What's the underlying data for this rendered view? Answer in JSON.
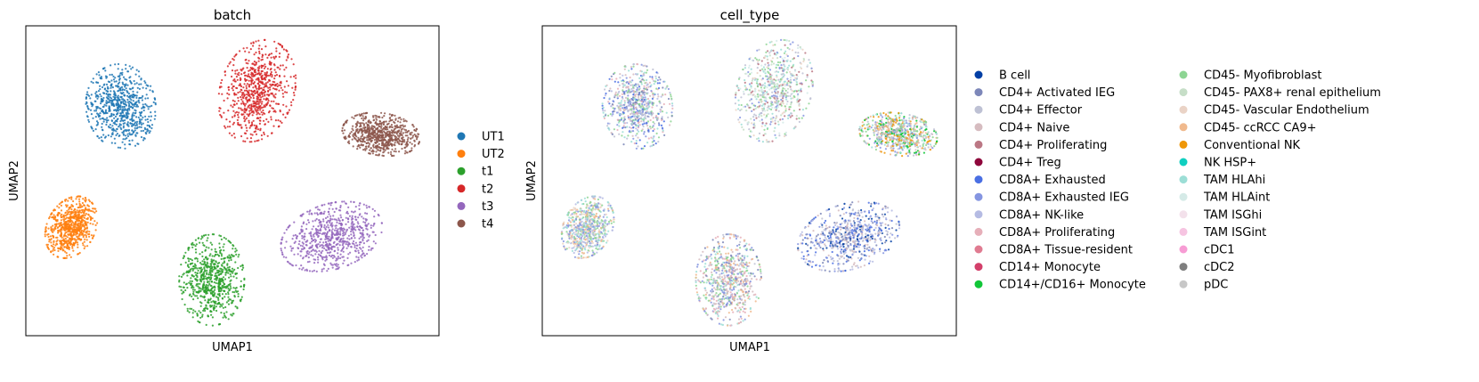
{
  "chart_data": [
    {
      "type": "scatter",
      "title": "batch",
      "xlabel": "UMAP1",
      "ylabel": "UMAP2",
      "grid": false,
      "legend_placement": "right",
      "legend": [
        {
          "label": "UT1",
          "color": "#1f77b4"
        },
        {
          "label": "UT2",
          "color": "#ff7f0e"
        },
        {
          "label": "t1",
          "color": "#2ca02c"
        },
        {
          "label": "t2",
          "color": "#d62728"
        },
        {
          "label": "t3",
          "color": "#9467bd"
        },
        {
          "label": "t4",
          "color": "#8c564b"
        }
      ],
      "clusters": [
        {
          "group": "UT1",
          "color": "#1f77b4",
          "cx": 0.23,
          "cy": 0.74,
          "rx": 0.08,
          "ry": 0.13,
          "rot": -8
        },
        {
          "group": "UT2",
          "color": "#ff7f0e",
          "cx": 0.11,
          "cy": 0.35,
          "rx": 0.055,
          "ry": 0.1,
          "rot": 28
        },
        {
          "group": "t1",
          "color": "#2ca02c",
          "cx": 0.45,
          "cy": 0.18,
          "rx": 0.075,
          "ry": 0.14,
          "rot": 0
        },
        {
          "group": "t2",
          "color": "#d62728",
          "cx": 0.56,
          "cy": 0.79,
          "rx": 0.085,
          "ry": 0.16,
          "rot": 18
        },
        {
          "group": "t3",
          "color": "#9467bd",
          "cx": 0.74,
          "cy": 0.32,
          "rx": 0.12,
          "ry": 0.1,
          "rot": -18
        },
        {
          "group": "t4",
          "color": "#8c564b",
          "cx": 0.86,
          "cy": 0.65,
          "rx": 0.09,
          "ry": 0.065,
          "rot": 8
        }
      ]
    },
    {
      "type": "scatter",
      "title": "cell_type",
      "xlabel": "UMAP1",
      "ylabel": "UMAP2",
      "grid": false,
      "legend_placement": "right",
      "legend": [
        {
          "label": "B cell",
          "color": "#023fa5"
        },
        {
          "label": "CD4+ Activated IEG",
          "color": "#7d87b9"
        },
        {
          "label": "CD4+ Effector",
          "color": "#bec1d4"
        },
        {
          "label": "CD4+ Naive",
          "color": "#d6bcc0"
        },
        {
          "label": "CD4+ Proliferating",
          "color": "#bb7784"
        },
        {
          "label": "CD4+ Treg",
          "color": "#8e063b"
        },
        {
          "label": "CD8A+ Exhausted",
          "color": "#4a6fe3"
        },
        {
          "label": "CD8A+ Exhausted IEG",
          "color": "#8595e1"
        },
        {
          "label": "CD8A+ NK-like",
          "color": "#b5bbe3"
        },
        {
          "label": "CD8A+ Proliferating",
          "color": "#e6afb9"
        },
        {
          "label": "CD8A+ Tissue-resident",
          "color": "#e07b91"
        },
        {
          "label": "CD14+ Monocyte",
          "color": "#d33f6a"
        },
        {
          "label": "CD14+/CD16+ Monocyte",
          "color": "#11c638"
        },
        {
          "label": "CD45- Myofibroblast",
          "color": "#8dd593"
        },
        {
          "label": "CD45- PAX8+ renal epithelium",
          "color": "#c6dec7"
        },
        {
          "label": "CD45- Vascular Endothelium",
          "color": "#ead3c6"
        },
        {
          "label": "CD45- ccRCC CA9+",
          "color": "#f0b98d"
        },
        {
          "label": "Conventional NK",
          "color": "#ef9708"
        },
        {
          "label": "NK HSP+",
          "color": "#0fcfc0"
        },
        {
          "label": "TAM HLAhi",
          "color": "#9cded6"
        },
        {
          "label": "TAM HLAint",
          "color": "#d5eae7"
        },
        {
          "label": "TAM ISGhi",
          "color": "#f3e1eb"
        },
        {
          "label": "TAM ISGint",
          "color": "#f6c4e1"
        },
        {
          "label": "cDC1",
          "color": "#f79cd4"
        },
        {
          "label": "cDC2",
          "color": "#7f7f7f"
        },
        {
          "label": "pDC",
          "color": "#c7c7c7"
        }
      ],
      "clusters": [
        {
          "cx": 0.23,
          "cy": 0.74,
          "rx": 0.08,
          "ry": 0.13,
          "rot": -8,
          "colors": [
            "#7d87b9",
            "#bec1d4",
            "#8595e1",
            "#b5bbe3",
            "#d6bcc0",
            "#9cded6",
            "#8dd593",
            "#e6afb9",
            "#4a6fe3"
          ]
        },
        {
          "cx": 0.11,
          "cy": 0.35,
          "rx": 0.055,
          "ry": 0.1,
          "rot": 28,
          "colors": [
            "#f0b98d",
            "#ead3c6",
            "#8dd593",
            "#9cded6",
            "#8595e1",
            "#b5bbe3"
          ]
        },
        {
          "cx": 0.45,
          "cy": 0.18,
          "rx": 0.075,
          "ry": 0.14,
          "rot": 0,
          "colors": [
            "#8595e1",
            "#bec1d4",
            "#d6bcc0",
            "#7d87b9",
            "#e6afb9",
            "#f0b98d",
            "#8dd593",
            "#9cded6"
          ]
        },
        {
          "cx": 0.56,
          "cy": 0.79,
          "rx": 0.085,
          "ry": 0.16,
          "rot": 18,
          "colors": [
            "#9cded6",
            "#c6dec7",
            "#d5eae7",
            "#bec1d4",
            "#8dd593",
            "#bb7784",
            "#8595e1",
            "#ead3c6"
          ]
        },
        {
          "cx": 0.74,
          "cy": 0.32,
          "rx": 0.12,
          "ry": 0.1,
          "rot": -18,
          "colors": [
            "#4a6fe3",
            "#8595e1",
            "#7d87b9",
            "#b5bbe3",
            "#bec1d4",
            "#d6bcc0",
            "#023fa5"
          ]
        },
        {
          "cx": 0.86,
          "cy": 0.65,
          "rx": 0.09,
          "ry": 0.065,
          "rot": 8,
          "colors": [
            "#f0b98d",
            "#ef9708",
            "#8dd593",
            "#9cded6",
            "#bec1d4",
            "#8595e1",
            "#d6bcc0",
            "#11c638"
          ]
        }
      ]
    }
  ]
}
